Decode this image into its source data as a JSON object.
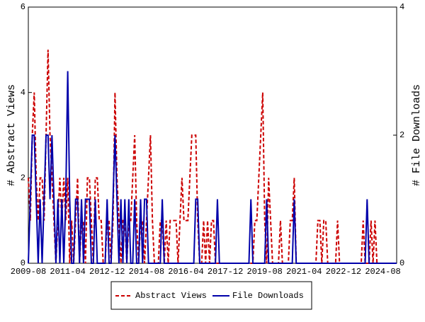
{
  "chart_data": {
    "type": "line",
    "categories": [
      "2009-08",
      null,
      null,
      null,
      null,
      null,
      null,
      null,
      null,
      null,
      null,
      null,
      null,
      null,
      null,
      null,
      null,
      null,
      null,
      null,
      "2011-04",
      null,
      null,
      null,
      null,
      null,
      null,
      null,
      null,
      null,
      null,
      null,
      null,
      null,
      null,
      null,
      null,
      null,
      null,
      null,
      "2012-12",
      null,
      null,
      null,
      null,
      null,
      null,
      null,
      null,
      null,
      null,
      null,
      null,
      null,
      null,
      null,
      null,
      null,
      null,
      null,
      "2014-08",
      null,
      null,
      null,
      null,
      null,
      null,
      null,
      null,
      null,
      null,
      null,
      null,
      null,
      null,
      null,
      null,
      null,
      null,
      null,
      "2016-04",
      null,
      null,
      null,
      null,
      null,
      null,
      null,
      null,
      null,
      null,
      null,
      null,
      null,
      null,
      null,
      null,
      null,
      null,
      null,
      "2017-12",
      null,
      null,
      null,
      null,
      null,
      null,
      null,
      null,
      null,
      null,
      null,
      null,
      null,
      null,
      null,
      null,
      null,
      null,
      null,
      "2019-08",
      null,
      null,
      null,
      null,
      null,
      null,
      null,
      null,
      null,
      null,
      null,
      null,
      null,
      null,
      null,
      null,
      null,
      null,
      null,
      "2021-04",
      null,
      null,
      null,
      null,
      null,
      null,
      null,
      null,
      null,
      null,
      null,
      null,
      null,
      null,
      null,
      null,
      null,
      null,
      null,
      "2022-12",
      null,
      null,
      null,
      null,
      null,
      null,
      null,
      null,
      null,
      null,
      null,
      null,
      null,
      null,
      null,
      null,
      null,
      null,
      null,
      "2024-08",
      null,
      null,
      null,
      null,
      null,
      null,
      null
    ],
    "series": [
      {
        "name": "Abstract Views",
        "color": "#cc0000",
        "linestyle": "dashed",
        "values": [
          2,
          1,
          3,
          4,
          2,
          1,
          2,
          2,
          1,
          3,
          5,
          3,
          2,
          1,
          0,
          1,
          2,
          1,
          2,
          1,
          2,
          0,
          1,
          0,
          1,
          2,
          0,
          1,
          1,
          0,
          2,
          2,
          1,
          0,
          2,
          2,
          1,
          1,
          0,
          0,
          1,
          1,
          0,
          1,
          4,
          2,
          1,
          0,
          1,
          1,
          0,
          1,
          1,
          2,
          3,
          1,
          0,
          1,
          1,
          0,
          1,
          2,
          3,
          1,
          0,
          0,
          0,
          1,
          1,
          0,
          1,
          0,
          1,
          1,
          1,
          1,
          0,
          1,
          2,
          1,
          1,
          1,
          2,
          3,
          3,
          3,
          1,
          0,
          0,
          1,
          0,
          1,
          0,
          1,
          1,
          0,
          0,
          0,
          0,
          0,
          0,
          0,
          0,
          0,
          0,
          0,
          0,
          0,
          0,
          0,
          0,
          0,
          0,
          0,
          0,
          1,
          1,
          2,
          3,
          4,
          1,
          0,
          2,
          1,
          0,
          0,
          0,
          0,
          1,
          0,
          0,
          0,
          0,
          1,
          1,
          2,
          0,
          0,
          0,
          0,
          0,
          0,
          0,
          0,
          0,
          0,
          0,
          1,
          1,
          0,
          1,
          1,
          0,
          0,
          0,
          0,
          0,
          1,
          0,
          0,
          0,
          0,
          0,
          0,
          0,
          0,
          0,
          0,
          0,
          0,
          1,
          0,
          0,
          0,
          1,
          0,
          1,
          0,
          0,
          0,
          0,
          0,
          0,
          0,
          0,
          0,
          0,
          0
        ]
      },
      {
        "name": "File Downloads",
        "color": "#0000aa",
        "linestyle": "solid",
        "axis": "y2",
        "values": [
          0,
          1,
          2,
          2,
          1,
          0,
          1,
          0,
          1,
          2,
          2,
          1,
          2,
          1,
          0,
          1,
          0,
          1,
          0,
          1,
          3,
          1,
          0,
          0,
          1,
          1,
          0,
          1,
          0,
          1,
          1,
          1,
          0,
          0,
          1,
          0,
          0,
          0,
          0,
          0,
          1,
          0,
          0,
          1,
          2,
          1,
          0,
          1,
          0,
          1,
          0,
          1,
          0,
          0,
          1,
          0,
          0,
          1,
          0,
          1,
          1,
          0,
          0,
          0,
          0,
          0,
          0,
          0,
          1,
          0,
          0,
          0,
          0,
          0,
          0,
          0,
          0,
          0,
          0,
          0,
          0,
          0,
          0,
          0,
          0,
          1,
          1,
          0,
          0,
          0,
          0,
          0,
          0,
          0,
          0,
          0,
          1,
          0,
          0,
          0,
          0,
          0,
          0,
          0,
          0,
          0,
          0,
          0,
          0,
          0,
          0,
          0,
          0,
          1,
          0,
          0,
          0,
          0,
          0,
          0,
          0,
          1,
          0,
          0,
          0,
          0,
          0,
          0,
          0,
          0,
          0,
          0,
          0,
          0,
          0,
          1,
          0,
          0,
          0,
          0,
          0,
          0,
          0,
          0,
          0,
          0,
          0,
          0,
          0,
          0,
          0,
          0,
          0,
          0,
          0,
          0,
          0,
          0,
          0,
          0,
          0,
          0,
          0,
          0,
          0,
          0,
          0,
          0,
          0,
          0,
          0,
          0,
          1,
          0,
          0,
          0,
          0,
          0,
          0,
          0,
          0,
          0,
          0,
          0,
          0,
          0,
          0,
          0
        ]
      }
    ],
    "ylabel": "# Abstract Views",
    "y2label": "# File Downloads",
    "ylim": [
      0,
      6
    ],
    "yticks": [
      0,
      2,
      4,
      6
    ],
    "y2lim": [
      0,
      4
    ],
    "y2ticks": [
      0,
      2,
      4
    ],
    "legend": "bottom"
  }
}
